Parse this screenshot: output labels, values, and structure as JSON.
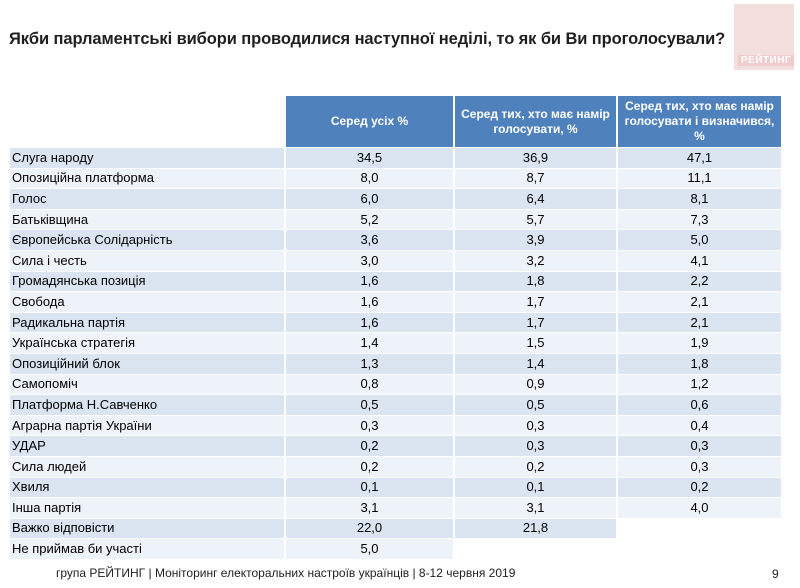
{
  "title": "Якби парламентські вибори проводилися наступної неділі, то як би Ви проголосували?",
  "logo_text": "РЕЙТИНГ",
  "columns": [
    "Серед усіх %",
    "Серед тих, хто має намір голосувати, %",
    "Серед тих, хто має намір голосувати і визначився, %"
  ],
  "rows": [
    {
      "party": "Слуга народу",
      "v": [
        "34,5",
        "36,9",
        "47,1"
      ]
    },
    {
      "party": "Опозиційна платформа",
      "v": [
        "8,0",
        "8,7",
        "11,1"
      ]
    },
    {
      "party": "Голос",
      "v": [
        "6,0",
        "6,4",
        "8,1"
      ]
    },
    {
      "party": "Батьківщина",
      "v": [
        "5,2",
        "5,7",
        "7,3"
      ]
    },
    {
      "party": "Європейська Солідарність",
      "v": [
        "3,6",
        "3,9",
        "5,0"
      ]
    },
    {
      "party": "Сила і честь",
      "v": [
        "3,0",
        "3,2",
        "4,1"
      ]
    },
    {
      "party": "Громадянська позиція",
      "v": [
        "1,6",
        "1,8",
        "2,2"
      ]
    },
    {
      "party": "Свобода",
      "v": [
        "1,6",
        "1,7",
        "2,1"
      ]
    },
    {
      "party": "Радикальна партія",
      "v": [
        "1,6",
        "1,7",
        "2,1"
      ]
    },
    {
      "party": "Українська стратегія",
      "v": [
        "1,4",
        "1,5",
        "1,9"
      ]
    },
    {
      "party": "Опозиційний блок",
      "v": [
        "1,3",
        "1,4",
        "1,8"
      ]
    },
    {
      "party": "Самопоміч",
      "v": [
        "0,8",
        "0,9",
        "1,2"
      ]
    },
    {
      "party": "Платформа Н.Савченко",
      "v": [
        "0,5",
        "0,5",
        "0,6"
      ]
    },
    {
      "party": "Аграрна партія України",
      "v": [
        "0,3",
        "0,3",
        "0,4"
      ]
    },
    {
      "party": "УДАР",
      "v": [
        "0,2",
        "0,3",
        "0,3"
      ]
    },
    {
      "party": "Сила людей",
      "v": [
        "0,2",
        "0,2",
        "0,3"
      ]
    },
    {
      "party": "Хвиля",
      "v": [
        "0,1",
        "0,1",
        "0,2"
      ]
    },
    {
      "party": "Інша партія",
      "v": [
        "3,1",
        "3,1",
        "4,0"
      ]
    },
    {
      "party": "Важко відповісти",
      "v": [
        "22,0",
        "21,8",
        null
      ]
    },
    {
      "party": "Не приймав би участі",
      "v": [
        "5,0",
        null,
        null
      ]
    }
  ],
  "footer": "група РЕЙТИНГ | Моніторинг електоральних настроїв українців  | 8-12 червня 2019",
  "page_number": "9"
}
